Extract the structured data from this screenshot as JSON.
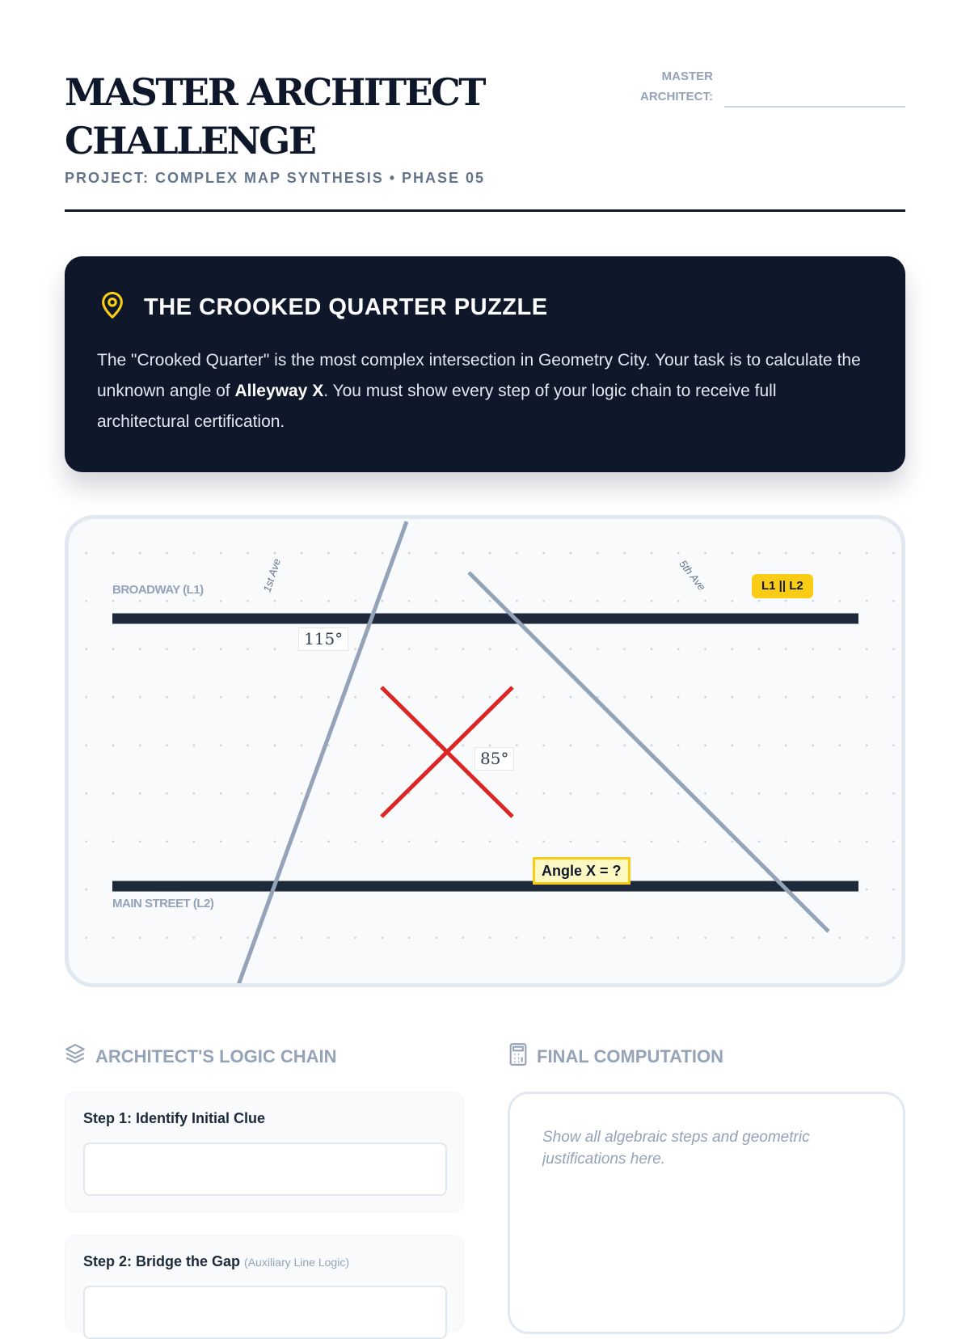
{
  "header": {
    "title": "MASTER ARCHITECT CHALLENGE",
    "subtitle": "PROJECT: COMPLEX MAP SYNTHESIS • PHASE 05",
    "architect_label": "MASTER ARCHITECT:",
    "architect_value": ""
  },
  "puzzle": {
    "icon": "map-pin-icon",
    "title": "THE CROOKED QUARTER PUZZLE",
    "text_before": "The \"Crooked Quarter\" is the most complex intersection in Geometry City. Your task is to calculate the unknown angle of ",
    "text_bold": "Alleyway X",
    "text_after": ". You must show every step of your logic chain to receive full architectural certification."
  },
  "map": {
    "broadway_label": "BROADWAY (L1)",
    "main_street_label": "MAIN STREET (L2)",
    "first_ave_label": "1st Ave",
    "fifth_ave_label": "5th Ave",
    "parallel_badge": "L1 || L2",
    "angle_115": "115°",
    "angle_85": "85°",
    "unknown_label": "Angle X = ?",
    "colors": {
      "street": "#1e293b",
      "avenue": "#94a3b8",
      "alley": "#dc2626",
      "highlight": "#facc15"
    }
  },
  "logic": {
    "icon": "layers-icon",
    "title": "ARCHITECT'S LOGIC CHAIN",
    "steps": [
      {
        "label": "Step 1: Identify Initial Clue",
        "hint": "",
        "value": ""
      },
      {
        "label": "Step 2: Bridge the Gap",
        "hint": "(Auxiliary Line Logic)",
        "value": ""
      }
    ]
  },
  "final": {
    "icon": "calculator-icon",
    "title": "FINAL COMPUTATION",
    "placeholder": "Show all algebraic steps and geometric justifications here.",
    "value": ""
  }
}
